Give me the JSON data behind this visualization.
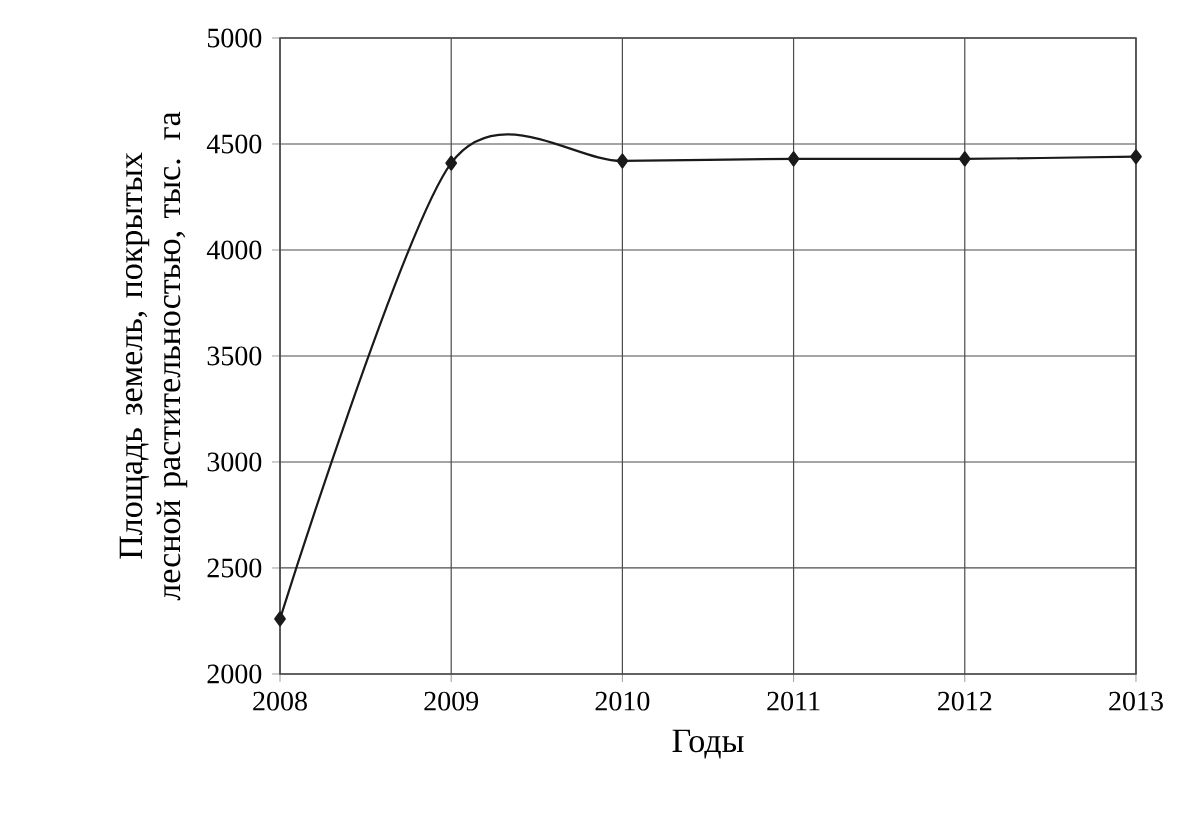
{
  "chart_data": {
    "type": "line",
    "xlabel": "Годы",
    "ylabel": "Площадь земель, покрытых лесной растительностью, тыс. га",
    "x": [
      2008,
      2009,
      2010,
      2011,
      2012,
      2013
    ],
    "series": [
      {
        "color": "#1a1a1a",
        "values": [
          2260,
          4410,
          4420,
          4430,
          4430,
          4440
        ]
      }
    ],
    "xlim": [
      2008,
      2013
    ],
    "xticks": [
      2008,
      2009,
      2010,
      2011,
      2012,
      2013
    ],
    "ylim": [
      2000,
      5000
    ],
    "yticks": [
      2000,
      2500,
      3000,
      3500,
      4000,
      4500,
      5000
    ],
    "grid": true,
    "marker": "diamond",
    "line_style": "solid"
  }
}
